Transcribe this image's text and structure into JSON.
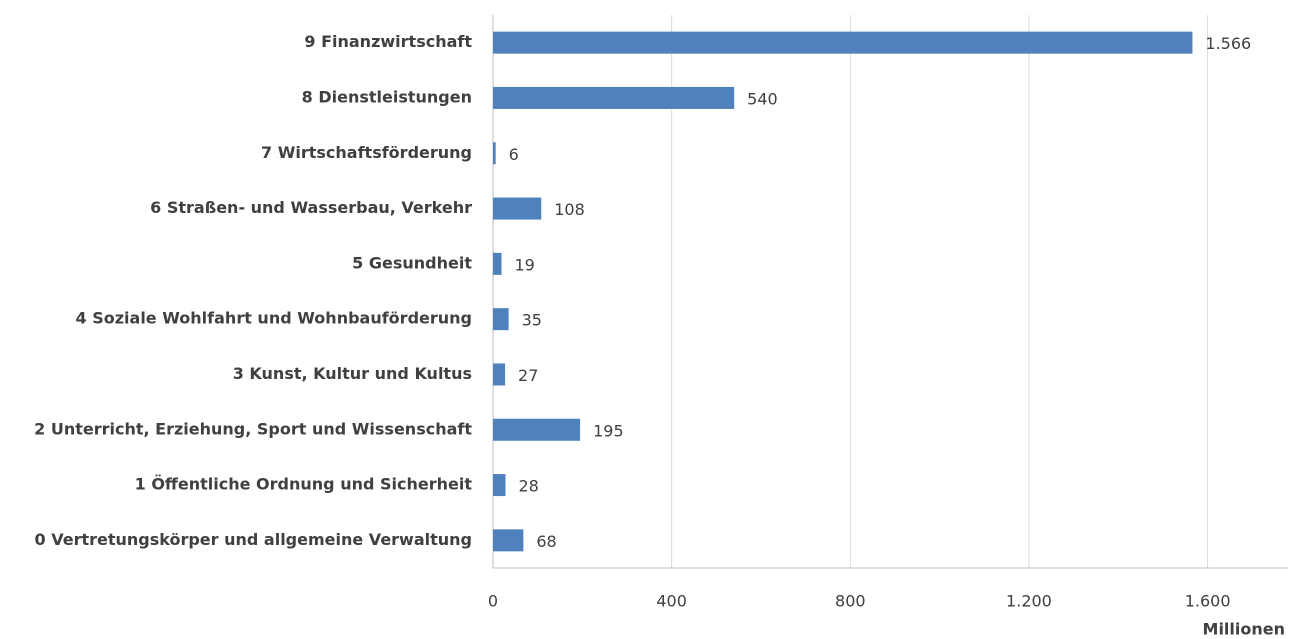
{
  "chart_data": {
    "type": "bar",
    "orientation": "horizontal",
    "categories": [
      "9 Finanzwirtschaft",
      "8 Dienstleistungen",
      "7 Wirtschaftsförderung",
      "6 Straßen- und Wasserbau, Verkehr",
      "5 Gesundheit",
      "4 Soziale Wohlfahrt und Wohnbauförderung",
      "3 Kunst, Kultur und Kultus",
      "2 Unterricht, Erziehung, Sport und Wissenschaft",
      "1 Öffentliche Ordnung und Sicherheit",
      "0 Vertretungskörper und allgemeine Verwaltung"
    ],
    "values": [
      1566,
      540,
      6,
      108,
      19,
      35,
      27,
      195,
      28,
      68
    ],
    "value_labels": [
      "1.566",
      "540",
      "6",
      "108",
      "19",
      "35",
      "27",
      "195",
      "28",
      "68"
    ],
    "color": "#4f81bd",
    "xlim": [
      0,
      1780
    ],
    "xticks": [
      0,
      400,
      800,
      {
        "value": 1200,
        "label": "1.200"
      },
      {
        "value": 1600,
        "label": "1.600"
      }
    ],
    "x_label": "Millionen",
    "grid": true
  }
}
